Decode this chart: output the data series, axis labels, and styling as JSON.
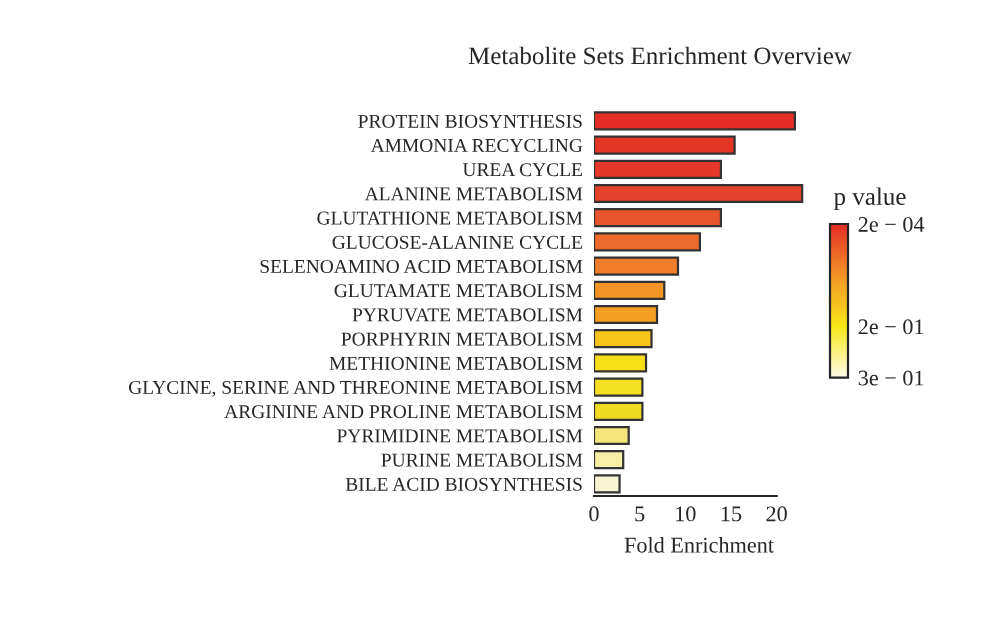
{
  "chart_data": {
    "type": "bar",
    "orientation": "horizontal",
    "title": "Metabolite Sets Enrichment Overview",
    "xlabel": "Fold Enrichment",
    "clabel": "p value",
    "categories": [
      "PROTEIN BIOSYNTHESIS",
      "AMMONIA RECYCLING",
      "UREA CYCLE",
      "ALANINE METABOLISM",
      "GLUTATHIONE METABOLISM",
      "GLUCOSE-ALANINE CYCLE",
      "SELENOAMINO ACID METABOLISM",
      "GLUTAMATE METABOLISM",
      "PYRUVATE METABOLISM",
      "PORPHYRIN METABOLISM",
      "METHIONINE METABOLISM",
      "GLYCINE, SERINE AND THREONINE METABOLISM",
      "ARGININE AND PROLINE METABOLISM",
      "PYRIMIDINE METABOLISM",
      "PURINE METABOLISM",
      "BILE ACID BIOSYNTHESIS"
    ],
    "values": [
      22,
      15.4,
      13.9,
      22.8,
      13.9,
      11.6,
      9.2,
      7.7,
      6.9,
      6.3,
      5.7,
      5.3,
      5.3,
      3.8,
      3.2,
      2.8
    ],
    "colors": [
      "#e42d26",
      "#e53527",
      "#e5372a",
      "#e4422a",
      "#e8542b",
      "#ec6a2c",
      "#ef7d2a",
      "#f39427",
      "#f5a022",
      "#f8c51c",
      "#f7df18",
      "#f3e020",
      "#f0dc22",
      "#f3e67a",
      "#f7efa4",
      "#f8f3d2"
    ],
    "xlim": [
      0,
      23
    ],
    "xticks": [
      0,
      5,
      10,
      15,
      20
    ],
    "clim": [
      0.3,
      0.0002
    ],
    "cticks": [
      {
        "value": 0.0002,
        "label": "2e − 04"
      },
      {
        "value": 0.2,
        "label": "2e − 01"
      },
      {
        "value": 0.3,
        "label": "3e − 01"
      }
    ],
    "grid": false,
    "legend": false
  }
}
